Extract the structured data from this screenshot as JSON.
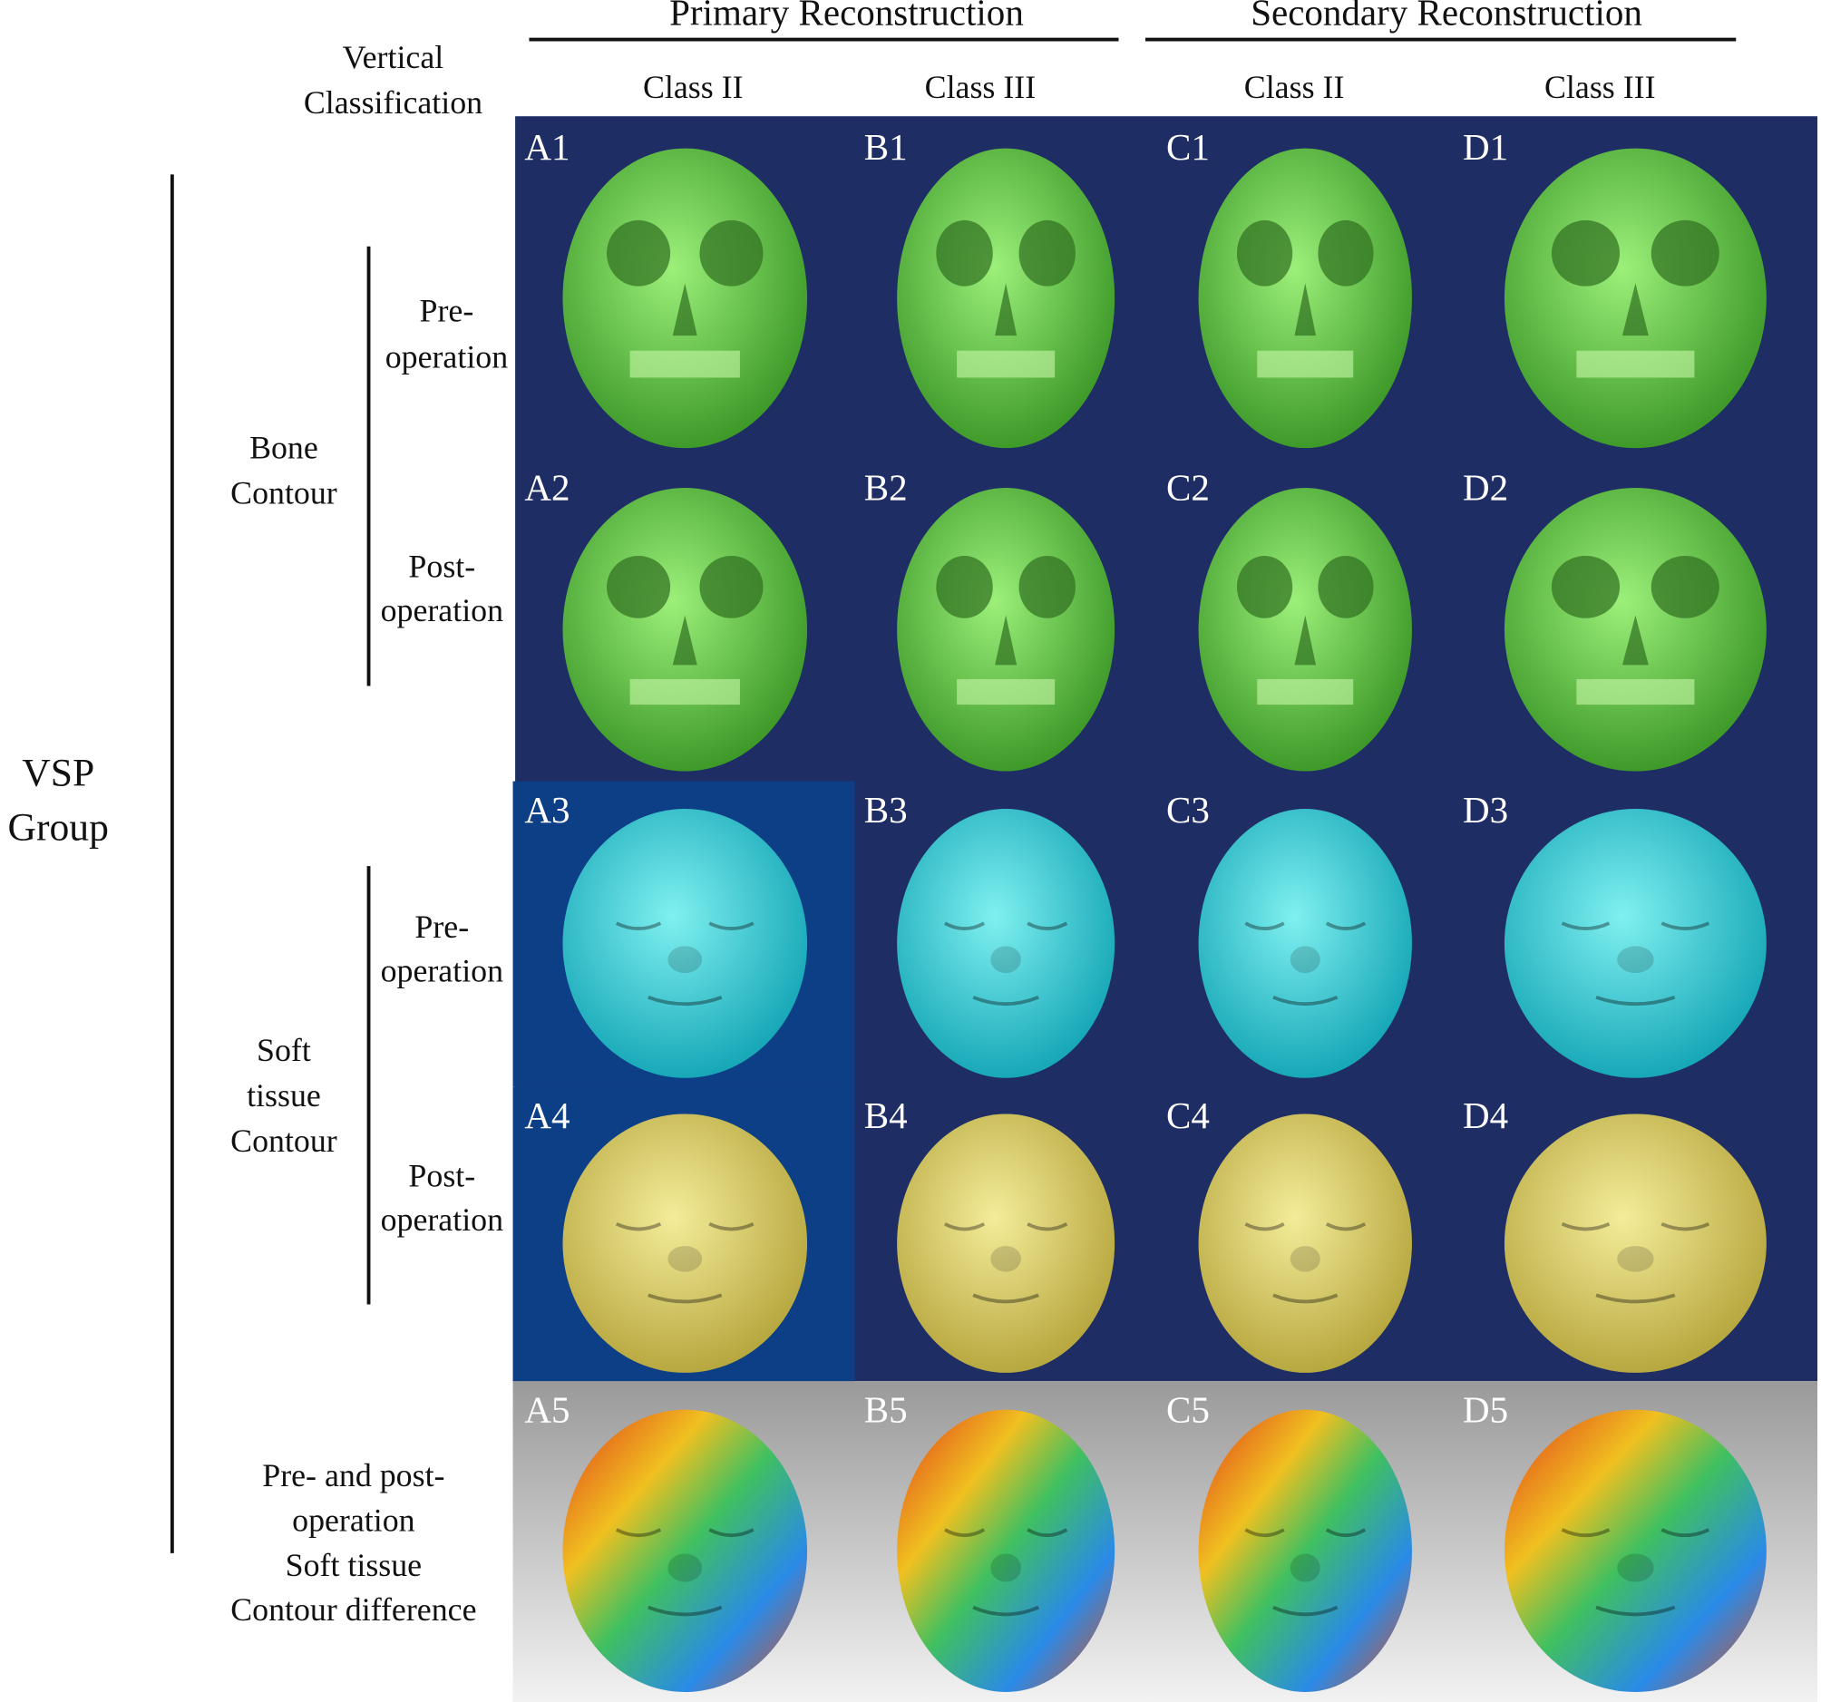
{
  "header": {
    "groups": [
      "Primary Reconstruction",
      "Secondary Reconstruction"
    ],
    "row_header": [
      "Vertical",
      "Classification"
    ],
    "columns": [
      "Class II",
      "Class III",
      "Class II",
      "Class III"
    ]
  },
  "group_label": [
    "VSP",
    "Group"
  ],
  "sections": [
    {
      "label": [
        "Bone",
        "Contour"
      ],
      "rows": [
        [
          "Pre-",
          "operation"
        ],
        [
          "Post-",
          "operation"
        ]
      ]
    },
    {
      "label": [
        "Soft",
        "tissue",
        "Contour"
      ],
      "rows": [
        [
          "Pre-",
          "operation"
        ],
        [
          "Post-",
          "operation"
        ]
      ]
    }
  ],
  "difference_label": [
    "Pre- and post-",
    "operation",
    "Soft  tissue",
    "Contour difference"
  ],
  "panels": [
    [
      "A1",
      "B1",
      "C1",
      "D1"
    ],
    [
      "A2",
      "B2",
      "C2",
      "D2"
    ],
    [
      "A3",
      "B3",
      "C3",
      "D3"
    ],
    [
      "A4",
      "B4",
      "C4",
      "D4"
    ],
    [
      "A5",
      "B5",
      "C5",
      "D5"
    ]
  ]
}
